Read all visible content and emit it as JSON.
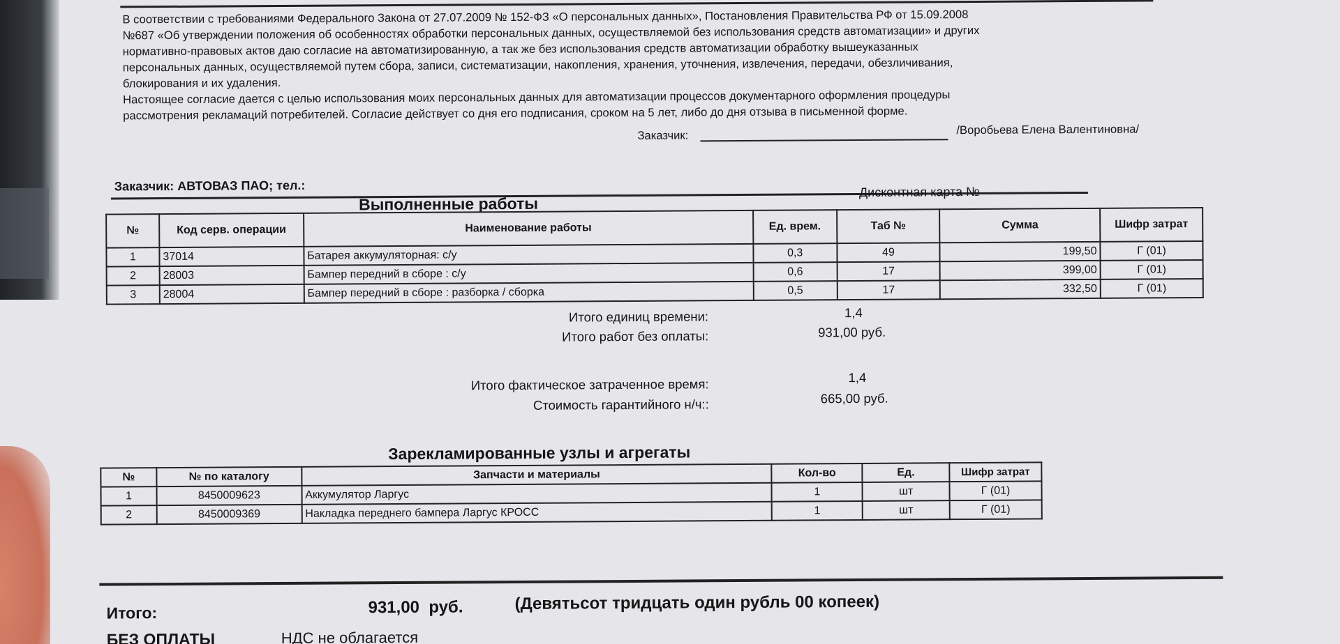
{
  "consent": {
    "lines": [
      "В соответствии с требованиями Федерального Закона от 27.07.2009 № 152-ФЗ «О персональных данных», Постановления Правительства РФ от 15.09.2008",
      "№687 «Об утверждении положения об особенностях обработки персональных данных, осуществляемой без использования средств автоматизации» и других",
      "нормативно-правовых актов даю согласие на автоматизированную, а так же без использования средств автоматизации обработку вышеуказанных",
      "персональных данных, осуществляемой путем сбора, записи, систематизации, накопления, хранения, уточнения, извлечения, передачи, обезличивания,",
      "блокирования и их удаления.",
      "Настоящее согласие дается с целью использования моих персональных данных для автоматизации процессов документарного оформления процедуры",
      "рассмотрения рекламаций потребителей. Согласие действует со дня его подписания, сроком на 5 лет, либо до дня отзыва в письменной форме."
    ],
    "signature_label": "Заказчик:",
    "signature_name": "/Воробьева Елена Валентиновна/"
  },
  "customer": "Заказчик: АВТОВАЗ ПАО; тел.:",
  "works": {
    "title": "Выполненные работы",
    "discount_card": "Дисконтная карта №",
    "headers": [
      "№",
      "Код серв. операции",
      "Наименование работы",
      "Ед. врем.",
      "Таб №",
      "Сумма",
      "Шифр затрат"
    ],
    "rows": [
      {
        "n": "1",
        "code": "37014",
        "name": "Батарея аккумуляторная: с/у",
        "time": "0,3",
        "tab": "49",
        "sum": "199,50",
        "cipher": "Г (01)"
      },
      {
        "n": "2",
        "code": "28003",
        "name": "Бампер передний в сборе : с/у",
        "time": "0,6",
        "tab": "17",
        "sum": "399,00",
        "cipher": "Г (01)"
      },
      {
        "n": "3",
        "code": "28004",
        "name": "Бампер передний в сборе : разборка / сборка",
        "time": "0,5",
        "tab": "17",
        "sum": "332,50",
        "cipher": "Г (01)"
      }
    ]
  },
  "totals": [
    {
      "label": "Итого единиц времени:",
      "value": "1,4"
    },
    {
      "label": "Итого работ без оплаты:",
      "value": "931,00  руб."
    },
    {
      "label": "Итого фактическое затраченное время:",
      "value": "1,4"
    },
    {
      "label": "Стоимость гарантийного н/ч::",
      "value": "665,00  руб."
    }
  ],
  "parts": {
    "title": "Зарекламированные узлы и агрегаты",
    "headers": [
      "№",
      "№ по каталогу",
      "Запчасти и материалы",
      "Кол-во",
      "Ед.",
      "Шифр затрат"
    ],
    "rows": [
      {
        "n": "1",
        "catalog": "8450009623",
        "name": "Аккумулятор Ларгус",
        "qty": "1",
        "unit": "шт",
        "cipher": "Г (01)"
      },
      {
        "n": "2",
        "catalog": "8450009369",
        "name": "Накладка переднего бампера Ларгус КРОСС",
        "qty": "1",
        "unit": "шт",
        "cipher": "Г (01)"
      }
    ]
  },
  "summary": {
    "label": "Итого:",
    "amount": "931,00  руб.",
    "words": "(Девятьсот тридцать один рубль 00 копеек)",
    "payment": "БЕЗ ОПЛАТЫ",
    "vat": "НДС не облагается"
  }
}
